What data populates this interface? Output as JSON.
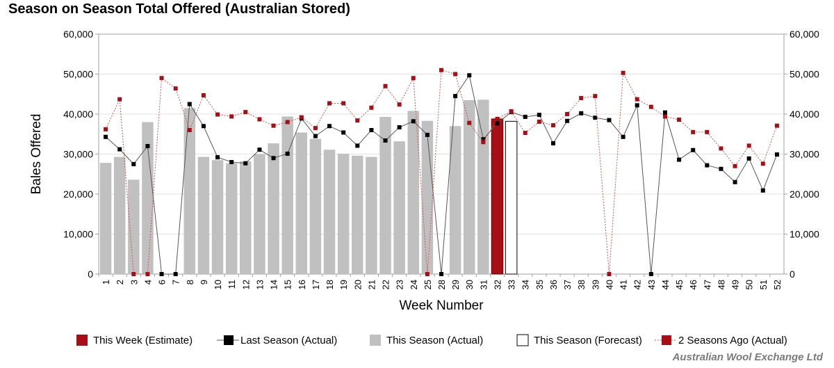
{
  "header": {
    "title": "Season on Season Total Offered (Australian Stored)"
  },
  "footer": {
    "credit": "Australian Wool Exchange Ltd"
  },
  "colors": {
    "this_week": "#a50f15",
    "last_season": "#000000",
    "this_season": "#c0c0c0",
    "forecast_fill": "#ffffff",
    "two_seasons_ago": "#a50f15",
    "grid": "#e0e0e0",
    "axis": "#a0a0a0"
  },
  "chart_data": {
    "type": "bar",
    "title": "Season on Season Total Offered (Australian Stored)",
    "xlabel": "Week Number",
    "ylabel": "Bales Offered",
    "ylim": [
      0,
      60000
    ],
    "y_ticks": [
      "0",
      "10,000",
      "20,000",
      "30,000",
      "40,000",
      "50,000",
      "60,000"
    ],
    "categories": [
      "1",
      "2",
      "3",
      "4",
      "6",
      "7",
      "8",
      "9",
      "10",
      "11",
      "12",
      "13",
      "14",
      "15",
      "16",
      "17",
      "18",
      "19",
      "20",
      "21",
      "22",
      "23",
      "24",
      "25",
      "28",
      "29",
      "30",
      "31",
      "32",
      "33",
      "34",
      "35",
      "36",
      "37",
      "38",
      "39",
      "40",
      "41",
      "42",
      "43",
      "44",
      "45",
      "46",
      "47",
      "48",
      "49",
      "50",
      "51",
      "52"
    ],
    "series": [
      {
        "name": "This Season (Actual)",
        "kind": "bar",
        "values": [
          27800,
          29300,
          23600,
          38000,
          null,
          null,
          41500,
          29300,
          28500,
          27700,
          28200,
          30000,
          32700,
          39400,
          35400,
          33800,
          31100,
          30100,
          29600,
          29300,
          39300,
          33200,
          40800,
          38300,
          null,
          37000,
          43500,
          43600,
          null,
          null,
          null,
          null,
          null,
          null,
          null,
          null,
          null,
          null,
          null,
          null,
          null,
          null,
          null,
          null,
          null,
          null,
          null,
          null,
          null
        ]
      },
      {
        "name": "This Week (Estimate)",
        "kind": "bar",
        "values": [
          null,
          null,
          null,
          null,
          null,
          null,
          null,
          null,
          null,
          null,
          null,
          null,
          null,
          null,
          null,
          null,
          null,
          null,
          null,
          null,
          null,
          null,
          null,
          null,
          null,
          null,
          null,
          null,
          38800,
          null,
          null,
          null,
          null,
          null,
          null,
          null,
          null,
          null,
          null,
          null,
          null,
          null,
          null,
          null,
          null,
          null,
          null,
          null,
          null
        ]
      },
      {
        "name": "This Season (Forecast)",
        "kind": "bar",
        "values": [
          null,
          null,
          null,
          null,
          null,
          null,
          null,
          null,
          null,
          null,
          null,
          null,
          null,
          null,
          null,
          null,
          null,
          null,
          null,
          null,
          null,
          null,
          null,
          null,
          null,
          null,
          null,
          null,
          null,
          38200,
          null,
          null,
          null,
          null,
          null,
          null,
          null,
          null,
          null,
          null,
          null,
          null,
          null,
          null,
          null,
          null,
          null,
          null,
          null
        ]
      },
      {
        "name": "Last Season (Actual)",
        "kind": "line",
        "values": [
          34300,
          31200,
          27500,
          32000,
          0,
          0,
          42500,
          37000,
          29200,
          28000,
          27700,
          31100,
          29000,
          30100,
          38900,
          34500,
          37000,
          35400,
          32100,
          36000,
          33400,
          36700,
          38200,
          34800,
          0,
          44500,
          49700,
          33700,
          37700,
          40500,
          39300,
          39800,
          32700,
          38300,
          40200,
          39100,
          38500,
          34300,
          42200,
          0,
          40400,
          28600,
          31000,
          27200,
          26300,
          23000,
          28900,
          20900,
          29900
        ]
      },
      {
        "name": "2 Seasons Ago (Actual)",
        "kind": "line-dotted",
        "values": [
          36200,
          43700,
          0,
          0,
          49000,
          46400,
          36000,
          44700,
          39900,
          39400,
          40500,
          38700,
          37100,
          38000,
          39200,
          36500,
          42700,
          42700,
          38400,
          41600,
          47000,
          42400,
          49000,
          0,
          51000,
          50000,
          37800,
          33000,
          38800,
          40700,
          35300,
          38100,
          37200,
          40000,
          44000,
          44500,
          0,
          50300,
          43700,
          41800,
          39400,
          38600,
          35500,
          35500,
          31400,
          27000,
          32100,
          27600,
          37100
        ]
      }
    ],
    "legend": [
      "This Week (Estimate)",
      "Last Season (Actual)",
      "This Season (Actual)",
      "This Season (Forecast)",
      "2 Seasons Ago (Actual)"
    ],
    "legend_position": "bottom",
    "grid": true
  }
}
